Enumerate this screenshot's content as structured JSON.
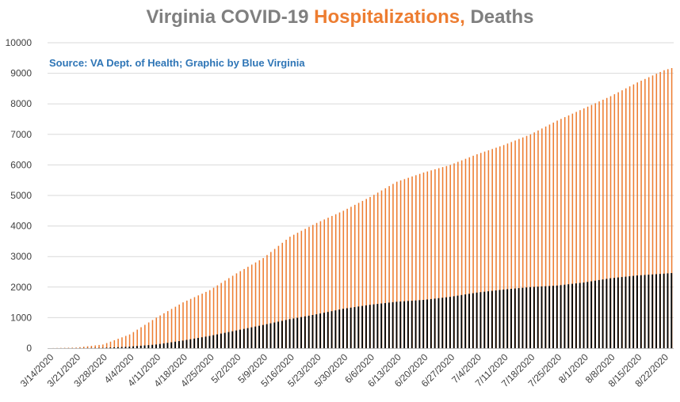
{
  "title": {
    "part1": "Virginia COVID-19 ",
    "part2": "Hospitalizations,",
    "part3": " Deaths"
  },
  "source": "Source: VA Dept. of Health; Graphic by Blue Virginia",
  "colors": {
    "hospitalizations": "#ed7d31",
    "deaths": "#000000",
    "grid": "#d9d9d9",
    "title_gray": "#7f7f7f",
    "source_blue": "#2e75b6"
  },
  "chart_data": {
    "type": "bar",
    "title": "Virginia COVID-19 Hospitalizations, Deaths",
    "ylim": [
      0,
      10000
    ],
    "y_ticks": [
      0,
      1000,
      2000,
      3000,
      4000,
      5000,
      6000,
      7000,
      8000,
      9000,
      10000
    ],
    "x_tick_labels": [
      "3/14/2020",
      "3/21/2020",
      "3/28/2020",
      "4/4/2020",
      "4/11/2020",
      "4/18/2020",
      "4/25/2020",
      "5/2/2020",
      "5/9/2020",
      "5/16/2020",
      "5/23/2020",
      "5/30/2020",
      "6/6/2020",
      "6/13/2020",
      "6/20/2020",
      "6/27/2020",
      "7/4/2020",
      "7/11/2020",
      "7/18/2020",
      "7/25/2020",
      "8/1/2020",
      "8/8/2020",
      "8/15/2020",
      "8/22/2020"
    ],
    "grid": true,
    "legend": "none",
    "series": [
      {
        "name": "Hospitalizations",
        "anchors": [
          [
            "3/14/2020",
            0
          ],
          [
            "3/21/2020",
            20
          ],
          [
            "3/28/2020",
            120
          ],
          [
            "4/4/2020",
            450
          ],
          [
            "4/11/2020",
            1000
          ],
          [
            "4/18/2020",
            1500
          ],
          [
            "4/25/2020",
            1900
          ],
          [
            "5/2/2020",
            2450
          ],
          [
            "5/9/2020",
            2950
          ],
          [
            "5/16/2020",
            3650
          ],
          [
            "5/23/2020",
            4100
          ],
          [
            "5/30/2020",
            4500
          ],
          [
            "6/6/2020",
            4950
          ],
          [
            "6/13/2020",
            5450
          ],
          [
            "6/20/2020",
            5750
          ],
          [
            "6/27/2020",
            6000
          ],
          [
            "7/4/2020",
            6350
          ],
          [
            "7/11/2020",
            6650
          ],
          [
            "7/18/2020",
            7000
          ],
          [
            "7/25/2020",
            7450
          ],
          [
            "8/1/2020",
            7850
          ],
          [
            "8/8/2020",
            8250
          ],
          [
            "8/15/2020",
            8700
          ],
          [
            "8/22/2020",
            9100
          ],
          [
            "8/24/2020",
            9170
          ]
        ]
      },
      {
        "name": "Deaths",
        "anchors": [
          [
            "3/14/2020",
            0
          ],
          [
            "3/21/2020",
            2
          ],
          [
            "3/28/2020",
            10
          ],
          [
            "4/4/2020",
            50
          ],
          [
            "4/11/2020",
            120
          ],
          [
            "4/18/2020",
            250
          ],
          [
            "4/25/2020",
            400
          ],
          [
            "5/2/2020",
            580
          ],
          [
            "5/9/2020",
            760
          ],
          [
            "5/16/2020",
            950
          ],
          [
            "5/23/2020",
            1110
          ],
          [
            "5/30/2020",
            1290
          ],
          [
            "6/6/2020",
            1420
          ],
          [
            "6/13/2020",
            1520
          ],
          [
            "6/20/2020",
            1580
          ],
          [
            "6/27/2020",
            1680
          ],
          [
            "7/4/2020",
            1820
          ],
          [
            "7/11/2020",
            1920
          ],
          [
            "7/18/2020",
            2000
          ],
          [
            "7/25/2020",
            2050
          ],
          [
            "8/1/2020",
            2150
          ],
          [
            "8/8/2020",
            2290
          ],
          [
            "8/15/2020",
            2380
          ],
          [
            "8/22/2020",
            2440
          ],
          [
            "8/24/2020",
            2460
          ]
        ]
      }
    ]
  }
}
